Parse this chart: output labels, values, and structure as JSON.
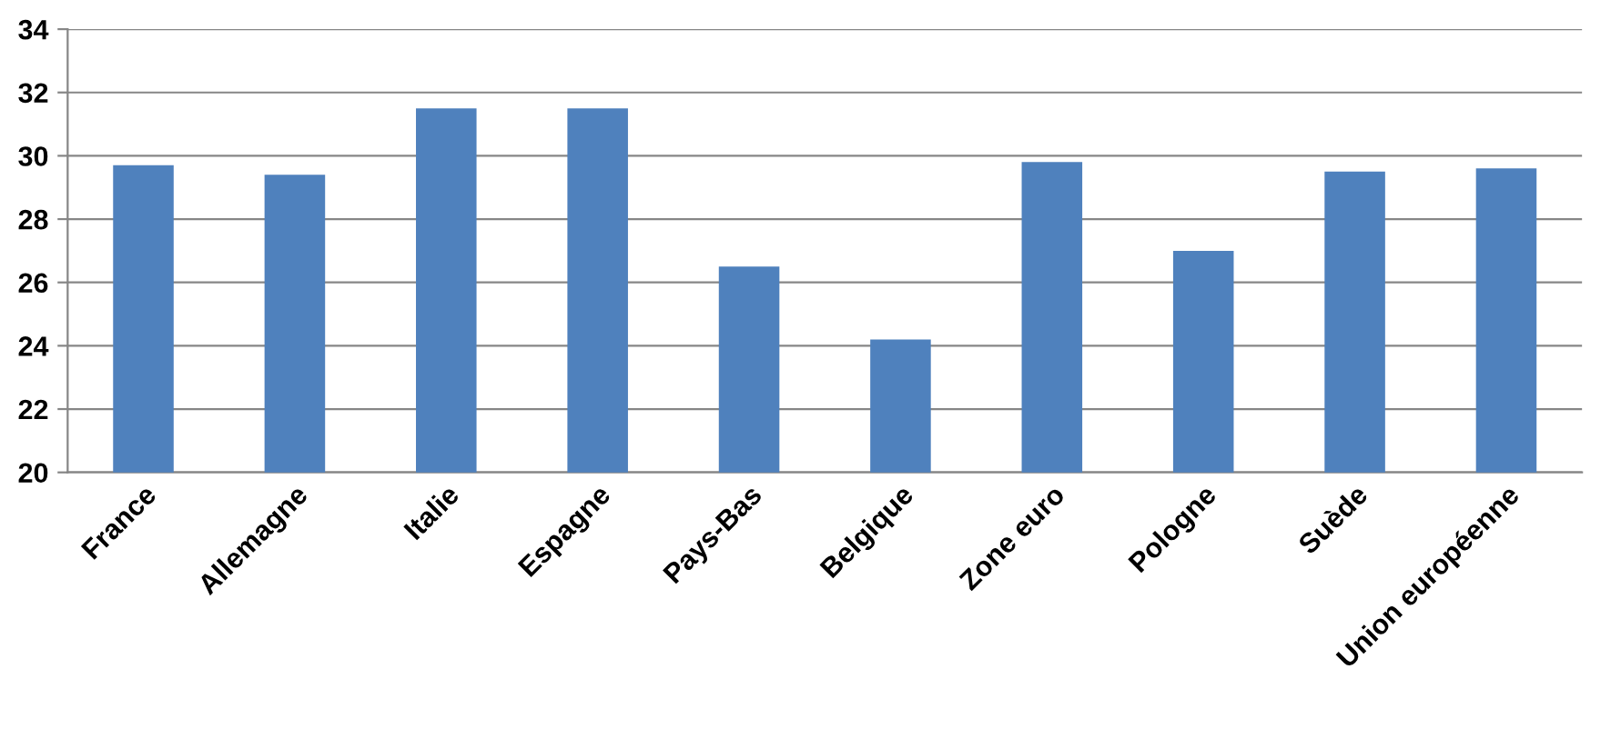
{
  "chart_data": {
    "type": "bar",
    "categories": [
      "France",
      "Allemagne",
      "Italie",
      "Espagne",
      "Pays-Bas",
      "Belgique",
      "Zone euro",
      "Pologne",
      "Suède",
      "Union européenne"
    ],
    "values": [
      29.7,
      29.4,
      31.5,
      31.5,
      26.5,
      24.2,
      29.8,
      27.0,
      29.5,
      29.6
    ],
    "color": "#4f81bd",
    "ylim": [
      20,
      34
    ],
    "yticks": [
      20,
      22,
      24,
      26,
      28,
      30,
      32,
      34
    ],
    "grid": "y",
    "legend": false
  }
}
